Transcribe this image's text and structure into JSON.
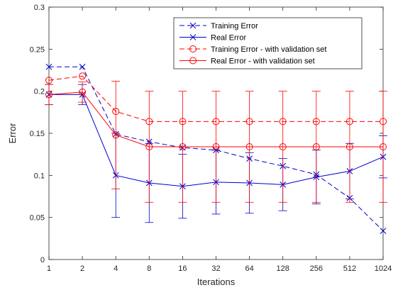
{
  "chart_data": {
    "type": "line",
    "title": "",
    "xlabel": "Iterations",
    "ylabel": "Error",
    "categories": [
      "1",
      "2",
      "4",
      "8",
      "16",
      "32",
      "64",
      "128",
      "256",
      "512",
      "1024"
    ],
    "ylim": [
      0,
      0.3
    ],
    "yticks": [
      "0",
      "0.05",
      "0.1",
      "0.15",
      "0.2",
      "0.25",
      "0.3"
    ],
    "grid": false,
    "legend_position": "top-right",
    "series": [
      {
        "name": "Training Error",
        "color": "#0000cc",
        "line_style": "dashed",
        "marker": "x",
        "values": [
          0.229,
          0.229,
          0.149,
          0.14,
          0.133,
          0.13,
          0.12,
          0.111,
          0.101,
          0.073,
          0.034
        ],
        "error": null
      },
      {
        "name": "Real Error",
        "color": "#0000cc",
        "line_style": "solid",
        "marker": "x",
        "values": [
          0.196,
          0.196,
          0.1,
          0.091,
          0.087,
          0.092,
          0.091,
          0.089,
          0.098,
          0.105,
          0.122
        ],
        "error": [
          0.012,
          0.012,
          0.05,
          0.047,
          0.038,
          0.038,
          0.036,
          0.031,
          0.032,
          0.033,
          0.025
        ]
      },
      {
        "name": "Training Error - with validation set",
        "color": "#ff0000",
        "line_style": "dashed",
        "marker": "o",
        "values": [
          0.213,
          0.218,
          0.176,
          0.164,
          0.164,
          0.164,
          0.164,
          0.164,
          0.164,
          0.164,
          0.164
        ],
        "error": null
      },
      {
        "name": "Real Error - with validation set",
        "color": "#ff0000",
        "line_style": "solid",
        "marker": "o",
        "values": [
          0.196,
          0.199,
          0.148,
          0.134,
          0.134,
          0.134,
          0.134,
          0.134,
          0.134,
          0.134,
          0.134
        ],
        "error": [
          0.012,
          0.012,
          0.064,
          0.066,
          0.066,
          0.066,
          0.066,
          0.066,
          0.066,
          0.066,
          0.066
        ]
      }
    ]
  }
}
